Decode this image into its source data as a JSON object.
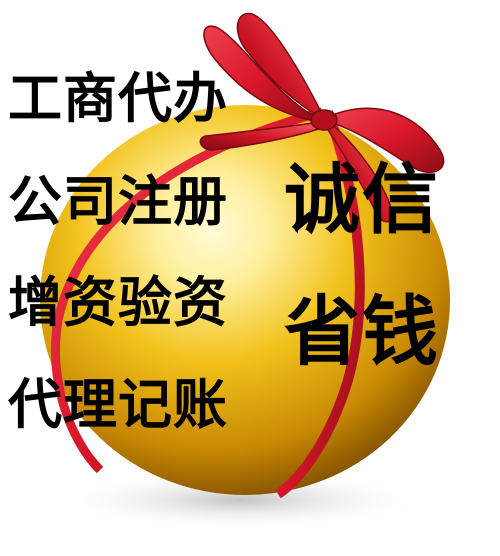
{
  "services": [
    {
      "text": "工商代办"
    },
    {
      "text": "公司注册"
    },
    {
      "text": "增资验资"
    },
    {
      "text": "代理记账"
    }
  ],
  "slogans": [
    {
      "text": "诚信"
    },
    {
      "text": "省钱"
    }
  ],
  "colors": {
    "gold_light": "#fff6b0",
    "gold_mid": "#e8b40c",
    "gold_dark": "#7a4a00",
    "ribbon": "#d8182a",
    "ribbon_dark": "#8e0c16",
    "text": "#000000"
  }
}
